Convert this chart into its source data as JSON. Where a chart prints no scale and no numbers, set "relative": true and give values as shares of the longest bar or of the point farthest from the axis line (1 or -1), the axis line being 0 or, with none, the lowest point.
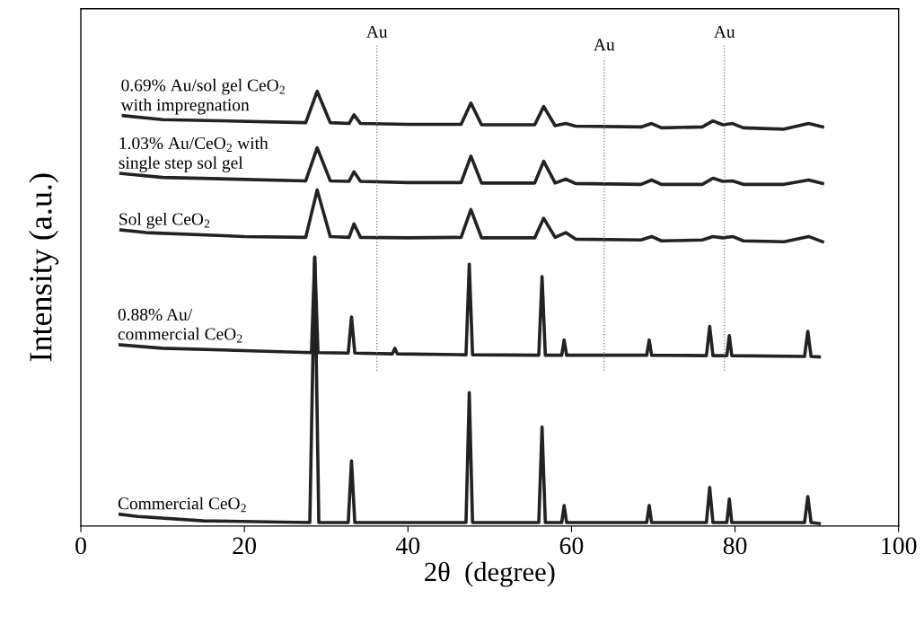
{
  "chart_data": {
    "type": "line",
    "relative": true,
    "xlabel": "2θ  (degree)",
    "ylabel": "Intensity (a.u.)",
    "xlim": [
      0,
      100
    ],
    "xticks": [
      0,
      20,
      40,
      60,
      80,
      100
    ],
    "grid": false,
    "legend": false,
    "marker": "none",
    "line_style": "solid",
    "tick_labels": "x",
    "ref_lines": [
      {
        "axis": "x",
        "value": 36.2,
        "label": "Au",
        "color": "#777777",
        "line_style": "dotted"
      },
      {
        "axis": "x",
        "value": 64.0,
        "label": "Au",
        "color": "#777777",
        "line_style": "dotted"
      },
      {
        "axis": "x",
        "value": 78.7,
        "label": "Au",
        "color": "#777777",
        "line_style": "dotted"
      }
    ],
    "series": [
      {
        "name": "Commercial CeO$_{2}$",
        "color": "#222222",
        "x": [
          4.8,
          7,
          15,
          28.0,
          28.6,
          29.1,
          32.7,
          33.1,
          33.5,
          47.1,
          47.5,
          47.9,
          56.0,
          56.4,
          56.8,
          58.8,
          59.1,
          59.4,
          69.2,
          69.5,
          69.8,
          76.5,
          76.9,
          77.3,
          79.0,
          79.3,
          79.6,
          88.5,
          88.9,
          89.3,
          90.3
        ],
        "values": [
          0.027,
          0.022,
          0.012,
          0.008,
          0.619,
          0.008,
          0.008,
          0.15,
          0.008,
          0.008,
          0.307,
          0.008,
          0.008,
          0.228,
          0.008,
          0.008,
          0.047,
          0.008,
          0.008,
          0.047,
          0.008,
          0.008,
          0.089,
          0.008,
          0.008,
          0.062,
          0.008,
          0.008,
          0.068,
          0.008,
          0.006
        ]
      },
      {
        "name": "0.88% Au/\ncommercial CeO$_{2}$",
        "color": "#222222",
        "x": [
          4.8,
          10,
          28.2,
          28.6,
          29.0,
          32.7,
          33.1,
          33.5,
          38.1,
          38.4,
          38.7,
          47.1,
          47.5,
          47.9,
          56.0,
          56.4,
          56.8,
          58.8,
          59.1,
          59.4,
          69.2,
          69.5,
          69.8,
          76.5,
          76.9,
          77.3,
          79.0,
          79.3,
          79.6,
          88.5,
          88.9,
          89.3,
          90.3
        ],
        "values": [
          0.417,
          0.409,
          0.399,
          0.619,
          0.399,
          0.398,
          0.481,
          0.398,
          0.396,
          0.409,
          0.396,
          0.394,
          0.602,
          0.394,
          0.393,
          0.574,
          0.393,
          0.393,
          0.428,
          0.393,
          0.393,
          0.428,
          0.393,
          0.392,
          0.459,
          0.392,
          0.392,
          0.438,
          0.392,
          0.39,
          0.448,
          0.39,
          0.389
        ]
      },
      {
        "name": "Sol gel CeO$_{2}$",
        "color": "#222222",
        "x": [
          4.9,
          8,
          20,
          27.5,
          28.9,
          30.5,
          32.8,
          33.4,
          34.2,
          40,
          46.5,
          47.7,
          49,
          55.5,
          56.6,
          58,
          59.3,
          60.5,
          68.5,
          69.8,
          71,
          76,
          77.3,
          78.5,
          79.7,
          81,
          86,
          89,
          90.7
        ],
        "values": [
          0.681,
          0.675,
          0.666,
          0.664,
          0.773,
          0.666,
          0.664,
          0.695,
          0.664,
          0.663,
          0.664,
          0.728,
          0.663,
          0.663,
          0.708,
          0.664,
          0.675,
          0.66,
          0.658,
          0.666,
          0.656,
          0.658,
          0.666,
          0.663,
          0.666,
          0.656,
          0.654,
          0.666,
          0.654
        ]
      },
      {
        "name": "1.03% Au/CeO$_{2}$ with\nsingle step sol gel",
        "color": "#222222",
        "x": [
          4.9,
          10,
          27.5,
          28.9,
          30.5,
          32.8,
          33.4,
          34.2,
          40,
          46.5,
          47.7,
          49,
          55.5,
          56.6,
          58,
          59.3,
          60.5,
          68.5,
          69.8,
          71,
          76,
          77.3,
          78.5,
          79.7,
          81,
          86,
          89,
          90.7
        ],
        "values": [
          0.811,
          0.802,
          0.794,
          0.87,
          0.794,
          0.793,
          0.815,
          0.793,
          0.79,
          0.79,
          0.851,
          0.789,
          0.789,
          0.839,
          0.789,
          0.798,
          0.788,
          0.786,
          0.796,
          0.786,
          0.786,
          0.8,
          0.793,
          0.794,
          0.786,
          0.786,
          0.796,
          0.788
        ]
      },
      {
        "name": "0.69% Au/sol gel CeO$_{2}$\nwith impregnation",
        "color": "#222222",
        "x": [
          5.2,
          10,
          27.5,
          28.9,
          30.5,
          32.8,
          33.4,
          34.2,
          40,
          46.5,
          47.7,
          49,
          55.5,
          56.6,
          58,
          59.3,
          60.5,
          68.5,
          69.8,
          71,
          76,
          77.3,
          78.5,
          79.7,
          81,
          86,
          89,
          90.7
        ],
        "values": [
          0.944,
          0.935,
          0.928,
          1.0,
          0.928,
          0.926,
          0.946,
          0.926,
          0.924,
          0.924,
          0.973,
          0.923,
          0.923,
          0.965,
          0.921,
          0.926,
          0.92,
          0.918,
          0.926,
          0.916,
          0.918,
          0.932,
          0.923,
          0.926,
          0.916,
          0.913,
          0.926,
          0.918
        ]
      }
    ]
  }
}
